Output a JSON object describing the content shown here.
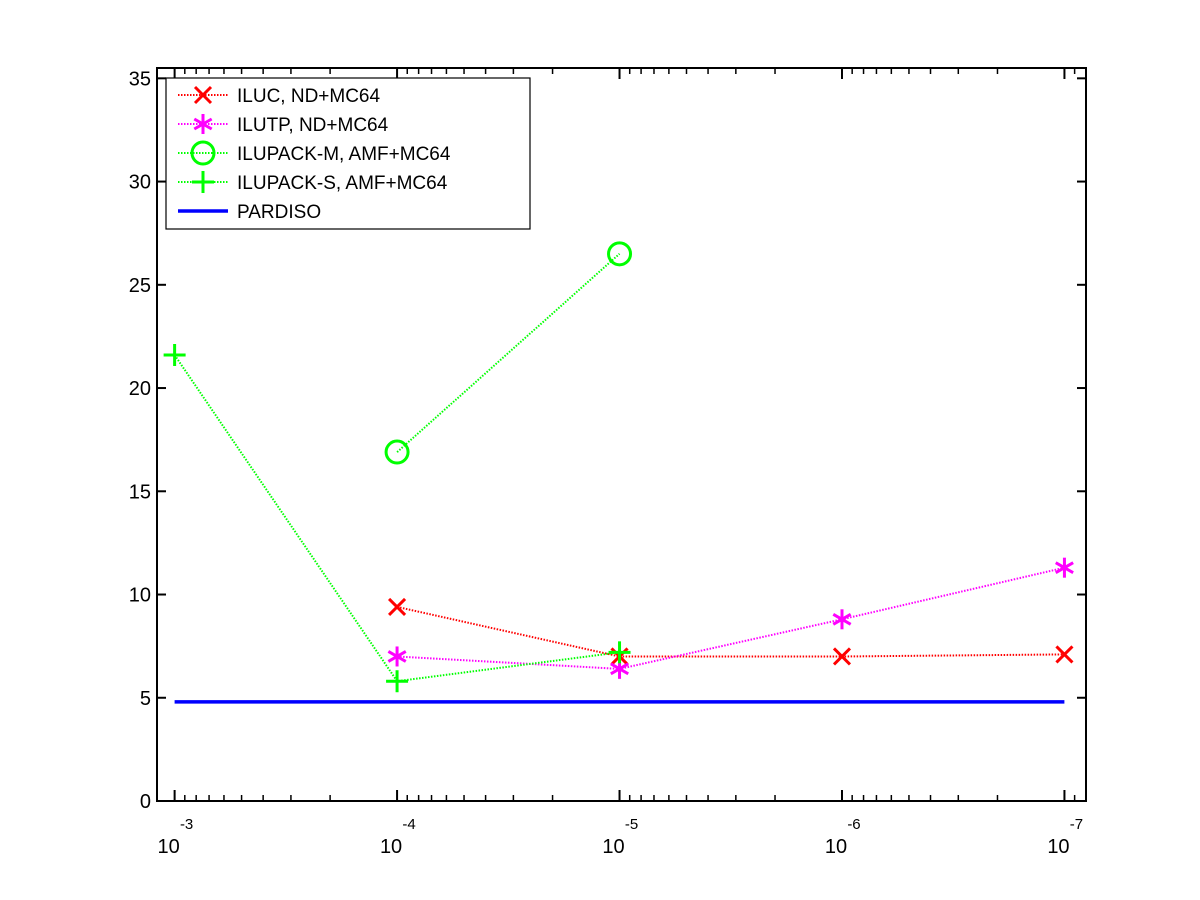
{
  "chart_data": {
    "type": "line",
    "x_scale": "log",
    "x_reversed": true,
    "x": [
      0.001,
      0.0001,
      1e-05,
      1e-06,
      1e-07
    ],
    "x_ticks": [
      {
        "base": "10",
        "exp": "-3",
        "value": 0.001
      },
      {
        "base": "10",
        "exp": "-4",
        "value": 0.0001
      },
      {
        "base": "10",
        "exp": "-5",
        "value": 1e-05
      },
      {
        "base": "10",
        "exp": "-6",
        "value": 1e-06
      },
      {
        "base": "10",
        "exp": "-7",
        "value": 1e-07
      }
    ],
    "xlim": [
      0.0012,
      8e-08
    ],
    "ylim": [
      0,
      35.5
    ],
    "y_ticks": [
      0,
      5,
      10,
      15,
      20,
      25,
      30,
      35
    ],
    "grid": false,
    "legend_position": "top-left",
    "series": [
      {
        "name": "ILUC,  ND+MC64",
        "color": "#ff0000",
        "marker": "x",
        "line": "dotted",
        "points": [
          [
            0.0001,
            9.4
          ],
          [
            1e-05,
            7.0
          ],
          [
            1e-06,
            7.0
          ],
          [
            1e-07,
            7.1
          ]
        ]
      },
      {
        "name": "ILUTP,  ND+MC64",
        "color": "#ff00ff",
        "marker": "asterisk",
        "line": "dotted",
        "points": [
          [
            0.0001,
            7.0
          ],
          [
            1e-05,
            6.4
          ],
          [
            1e-06,
            8.8
          ],
          [
            1e-07,
            11.3
          ]
        ]
      },
      {
        "name": "ILUPACK-M, AMF+MC64",
        "color": "#00ff00",
        "marker": "circle",
        "line": "dotted",
        "points": [
          [
            0.0001,
            16.9
          ],
          [
            1e-05,
            26.5
          ]
        ]
      },
      {
        "name": "ILUPACK-S, AMF+MC64",
        "color": "#00ff00",
        "marker": "plus",
        "line": "dotted",
        "points": [
          [
            0.001,
            21.6
          ],
          [
            0.0001,
            5.8
          ],
          [
            1e-05,
            7.2
          ]
        ]
      },
      {
        "name": "PARDISO",
        "color": "#0000ff",
        "marker": "none",
        "line": "solid",
        "points": [
          [
            0.001,
            4.8
          ],
          [
            1e-07,
            4.8
          ]
        ]
      }
    ]
  }
}
